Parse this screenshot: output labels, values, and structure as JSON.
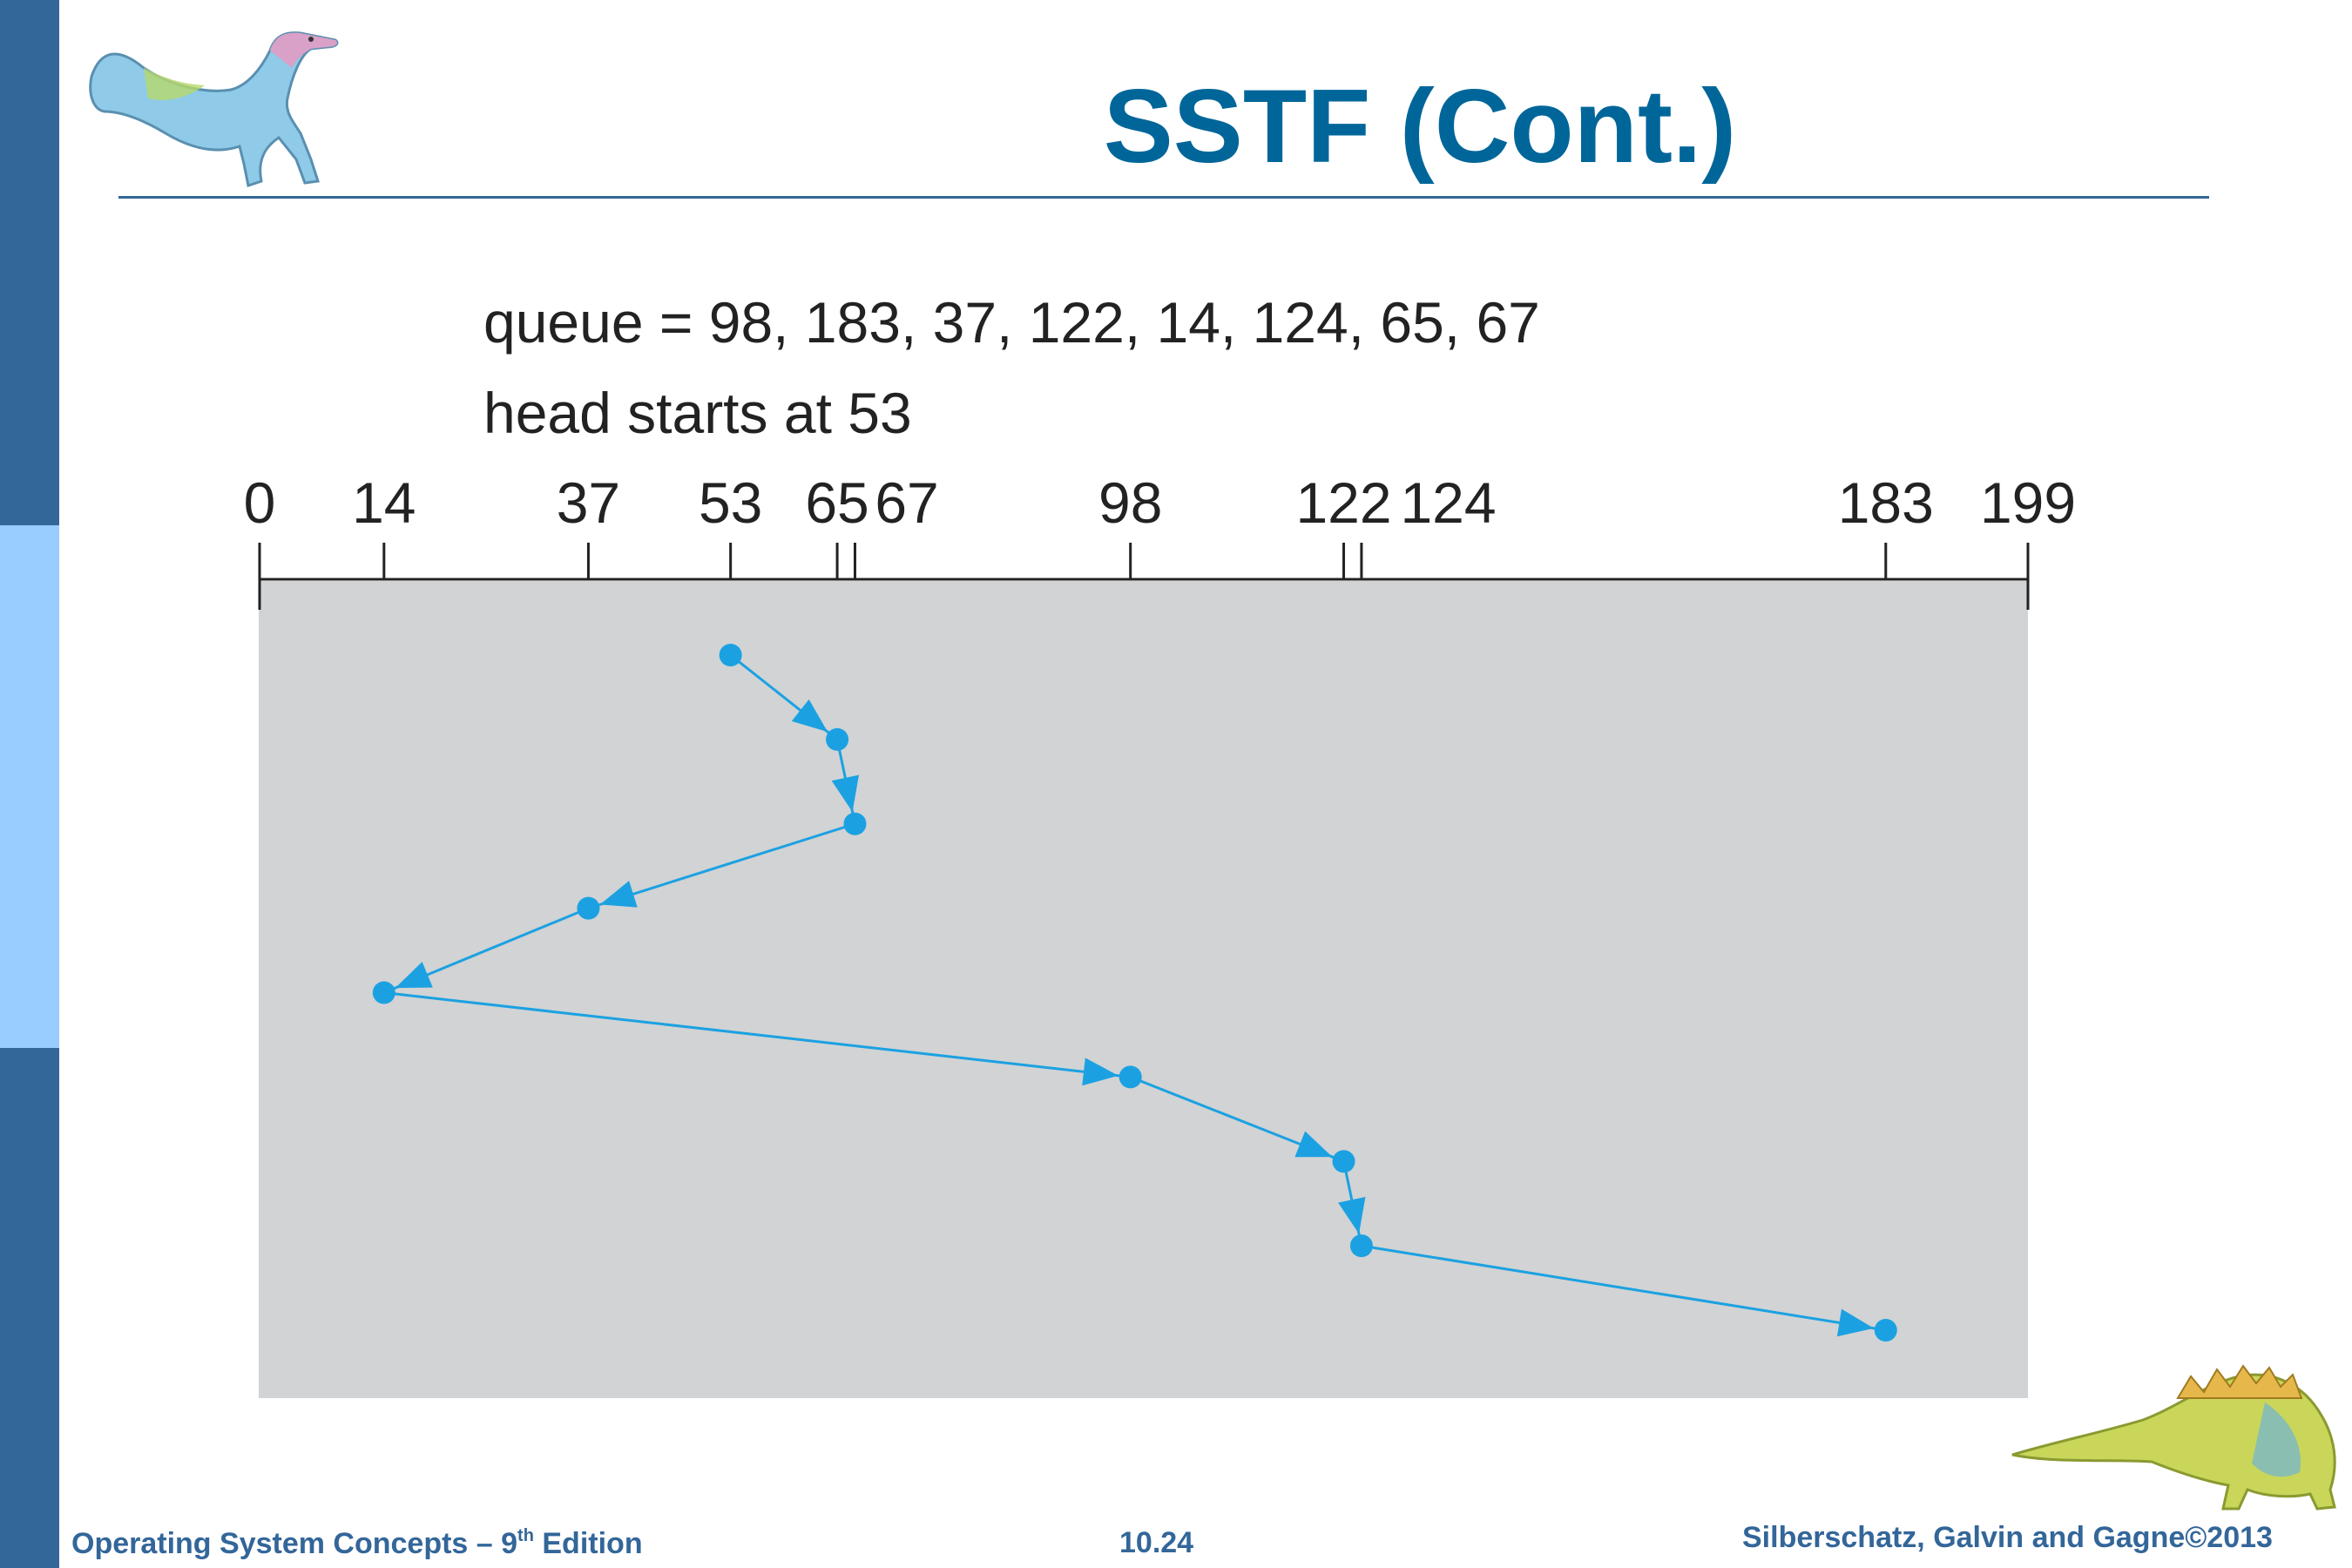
{
  "slide": {
    "title": "SSTF (Cont.)",
    "footer": {
      "book_prefix": "Operating System Concepts  – 9",
      "book_sup": "th",
      "book_suffix": " Edition",
      "page_number": "10.24",
      "authors": "Silberschatz, Galvin and Gagne©2013"
    }
  },
  "diagram": {
    "queue_line": "queue = 98, 183, 37, 122, 14, 124, 65, 67",
    "head_line": "head starts at 53",
    "axis_min": 0,
    "axis_max": 199,
    "ticks": [
      0,
      14,
      37,
      53,
      65,
      67,
      98,
      122,
      124,
      183,
      199
    ],
    "tick_labels": [
      "0",
      "14",
      "37",
      "53",
      "65",
      "67",
      "98",
      "122",
      "124",
      "183",
      "199"
    ],
    "service_order": [
      53,
      65,
      67,
      37,
      14,
      98,
      122,
      124,
      183
    ],
    "colors": {
      "path": "#1ba1e2",
      "panel": "#d1d3d4",
      "title": "#006699",
      "sidebar_dark": "#336699",
      "sidebar_light": "#99ccff"
    }
  },
  "icons": [
    "dinosaur-top-icon",
    "dinosaur-bottom-icon"
  ]
}
